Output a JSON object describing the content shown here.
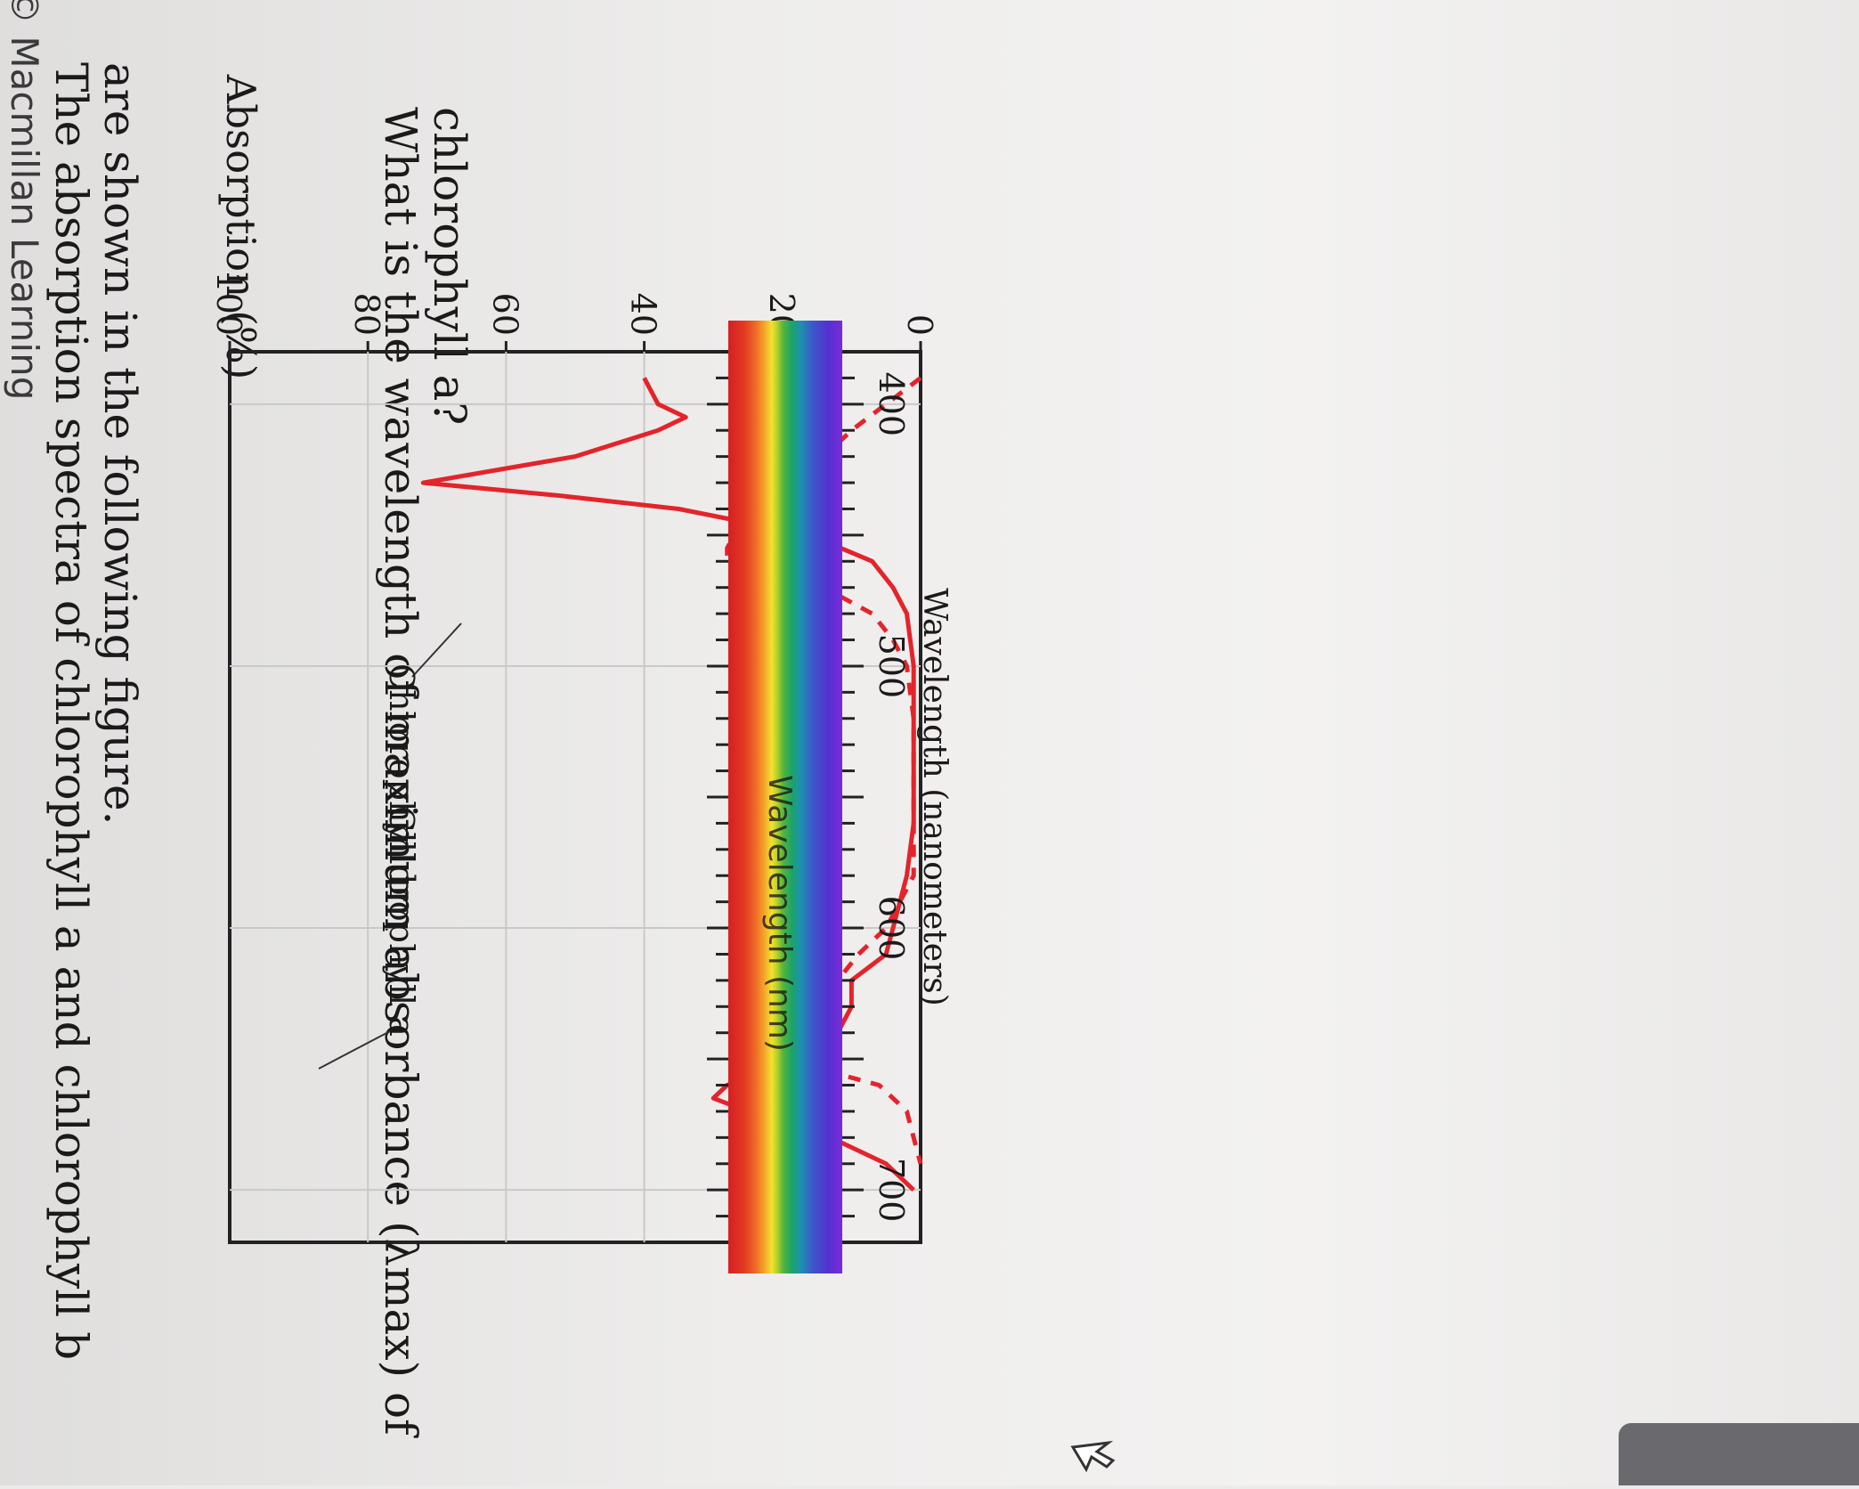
{
  "copyright": "© Macmillan Learning",
  "intro": {
    "line1": "The absorption spectra of chlorophyll a and chlorophyll b",
    "line2": "are shown in the following figure."
  },
  "question": {
    "line1": "What is the wavelength of maximum absorbance (λmax) of",
    "line2": "chlorophyll a?"
  },
  "colors": {
    "curve": "#e3242b",
    "frame": "#222222",
    "text": "#1a1a1a"
  },
  "chart_data": {
    "type": "line",
    "xlabel": "Wavelength (nanometers)",
    "ylabel": "Absorption (%)",
    "spectrum_label": "Wavelength (nm)",
    "xlim": [
      380,
      720
    ],
    "ylim": [
      0,
      100
    ],
    "x_ticks": [
      400,
      500,
      600,
      700
    ],
    "y_ticks": [
      0,
      20,
      40,
      60,
      80,
      100
    ],
    "grid": true,
    "series": [
      {
        "name": "Chlorophyll a",
        "style": "solid",
        "points": [
          [
            390,
            40
          ],
          [
            400,
            38
          ],
          [
            405,
            34
          ],
          [
            410,
            38
          ],
          [
            420,
            50
          ],
          [
            430,
            72
          ],
          [
            435,
            52
          ],
          [
            440,
            35
          ],
          [
            450,
            16
          ],
          [
            460,
            7
          ],
          [
            470,
            4
          ],
          [
            480,
            2
          ],
          [
            500,
            1
          ],
          [
            520,
            1
          ],
          [
            540,
            1
          ],
          [
            560,
            1
          ],
          [
            580,
            2
          ],
          [
            600,
            4
          ],
          [
            610,
            5
          ],
          [
            620,
            10
          ],
          [
            630,
            10
          ],
          [
            640,
            12
          ],
          [
            650,
            18
          ],
          [
            660,
            28
          ],
          [
            665,
            30
          ],
          [
            670,
            25
          ],
          [
            680,
            13
          ],
          [
            690,
            5
          ],
          [
            700,
            1
          ]
        ]
      },
      {
        "name": "Chlorophyll b",
        "style": "dashed",
        "points": [
          [
            390,
            0
          ],
          [
            400,
            5
          ],
          [
            410,
            10
          ],
          [
            420,
            14
          ],
          [
            430,
            17
          ],
          [
            440,
            22
          ],
          [
            450,
            27
          ],
          [
            455,
            28
          ],
          [
            460,
            28
          ],
          [
            465,
            25
          ],
          [
            470,
            14
          ],
          [
            480,
            7
          ],
          [
            490,
            4
          ],
          [
            500,
            2
          ],
          [
            520,
            1
          ],
          [
            540,
            1
          ],
          [
            560,
            1
          ],
          [
            580,
            1
          ],
          [
            600,
            5
          ],
          [
            610,
            9
          ],
          [
            620,
            12
          ],
          [
            630,
            14
          ],
          [
            640,
            22
          ],
          [
            645,
            24
          ],
          [
            650,
            20
          ],
          [
            655,
            13
          ],
          [
            660,
            6
          ],
          [
            670,
            2
          ],
          [
            680,
            1
          ],
          [
            690,
            0
          ]
        ]
      }
    ],
    "annotations": [
      {
        "text": "Chlorophyll b",
        "series": "Chlorophyll b"
      },
      {
        "text": "Chlorophyll a",
        "series": "Chlorophyll a"
      }
    ]
  }
}
